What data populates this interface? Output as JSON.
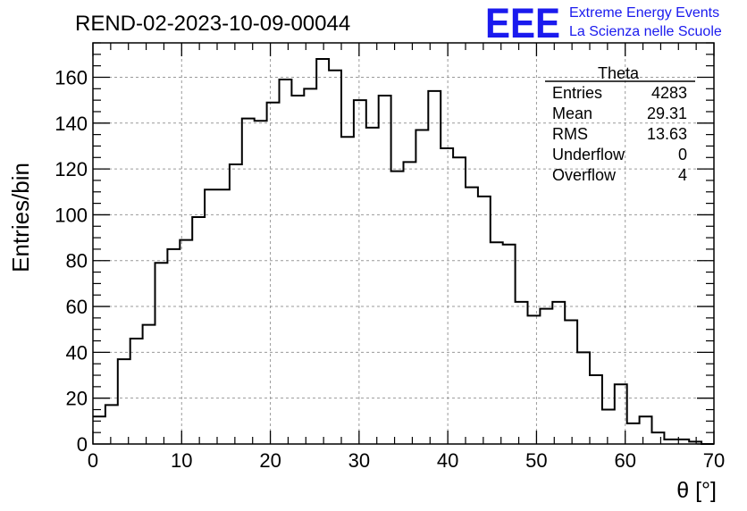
{
  "chart_data": {
    "type": "histogram",
    "title": "REND-02-2023-10-09-00044",
    "xlabel": "θ [°]",
    "ylabel": "Entries/bin",
    "xlim": [
      0,
      70
    ],
    "ylim": [
      0,
      175
    ],
    "grid": true,
    "bin_width": 1.4,
    "x_ticks": [
      0,
      10,
      20,
      30,
      40,
      50,
      60,
      70
    ],
    "y_ticks": [
      0,
      20,
      40,
      60,
      80,
      100,
      120,
      140,
      160
    ],
    "values": [
      12,
      17,
      37,
      46,
      52,
      79,
      85,
      89,
      99,
      111,
      111,
      122,
      142,
      141,
      149,
      159,
      152,
      155,
      168,
      163,
      134,
      150,
      138,
      152,
      119,
      123,
      137,
      154,
      129,
      125,
      112,
      108,
      88,
      87,
      62,
      56,
      59,
      62,
      54,
      40,
      30,
      15,
      26,
      9,
      12,
      5,
      2,
      2,
      1,
      0
    ],
    "series_color": "#000000",
    "stats_box": {
      "title": "Theta",
      "rows": [
        {
          "label": "Entries",
          "value": "4283"
        },
        {
          "label": "Mean",
          "value": "29.31"
        },
        {
          "label": "RMS",
          "value": "13.63"
        },
        {
          "label": "Underflow",
          "value": "0"
        },
        {
          "label": "Overflow",
          "value": "4"
        }
      ]
    }
  },
  "logo": {
    "mark": "EEE",
    "line1": "Extreme Energy Events",
    "line2": "La Scienza nelle Scuole",
    "color": "#1a1aee"
  }
}
